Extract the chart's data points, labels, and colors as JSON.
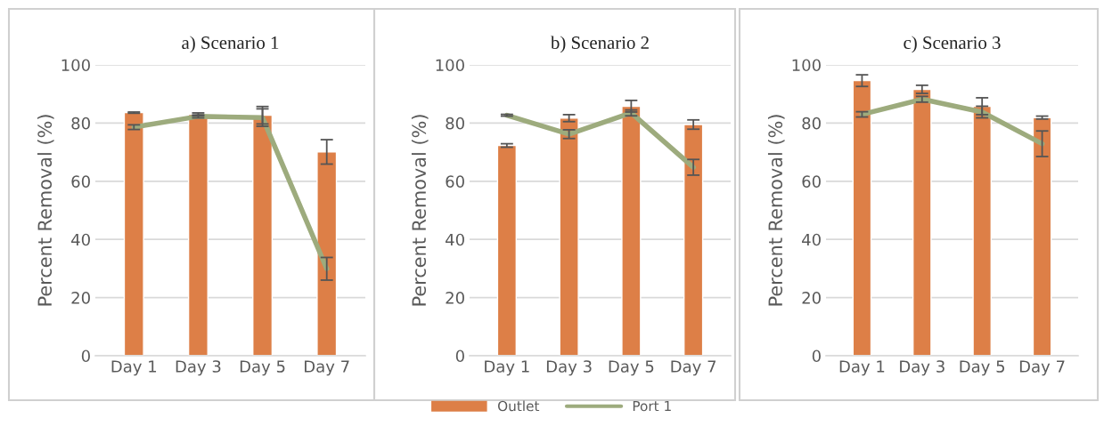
{
  "chart_data": [
    {
      "type": "bar",
      "title": "a) Scenario 1",
      "ylabel": "Percent Removal (%)",
      "categories": [
        "Day 1",
        "Day 3",
        "Day 5",
        "Day 7"
      ],
      "ylim": [
        0,
        100
      ],
      "yticks": [
        0,
        20,
        40,
        60,
        80,
        100
      ],
      "grid": "y",
      "legend": "bottom",
      "series": [
        {
          "name": "Outlet",
          "color": "#dd7f47",
          "values": [
            83.6,
            83.0,
            82.7,
            70.1
          ],
          "errors": [
            0.2,
            0.5,
            3.0,
            4.2
          ]
        },
        {
          "name": "Port 1",
          "type": "line",
          "color": "#9dab7d",
          "values": [
            78.6,
            82.3,
            81.9,
            29.9
          ],
          "errors": [
            0.8,
            0.5,
            3.0,
            3.9
          ]
        }
      ]
    },
    {
      "type": "bar",
      "title": "b) Scenario 2",
      "ylabel": "Percent Removal (%)",
      "categories": [
        "Day 1",
        "Day 3",
        "Day 5",
        "Day 7"
      ],
      "ylim": [
        0,
        100
      ],
      "yticks": [
        0,
        20,
        40,
        60,
        80,
        100
      ],
      "grid": "y",
      "series": [
        {
          "color": "#dd7f47",
          "values": [
            72.3,
            81.7,
            85.8,
            79.5
          ],
          "errors": [
            0.6,
            1.2,
            2.0,
            1.6
          ]
        },
        {
          "type": "line",
          "color": "#9dab7d",
          "values": [
            82.7,
            76.2,
            83.5,
            64.8
          ],
          "errors": [
            0.3,
            1.5,
            1.0,
            2.7
          ]
        }
      ]
    },
    {
      "type": "bar",
      "title": "c) Scenario 3",
      "ylabel": "Percent Removal (%)",
      "categories": [
        "Day 1",
        "Day 3",
        "Day 5",
        "Day 7"
      ],
      "ylim": [
        0,
        100
      ],
      "yticks": [
        0,
        20,
        40,
        60,
        80,
        100
      ],
      "grid": "y",
      "series": [
        {
          "color": "#dd7f47",
          "values": [
            94.6,
            91.6,
            85.8,
            81.9
          ],
          "errors": [
            2.0,
            1.4,
            2.9,
            0.5
          ]
        },
        {
          "type": "line",
          "color": "#9dab7d",
          "values": [
            83.0,
            88.2,
            83.8,
            72.9
          ],
          "errors": [
            0.9,
            1.0,
            2.0,
            4.4
          ]
        }
      ]
    }
  ]
}
